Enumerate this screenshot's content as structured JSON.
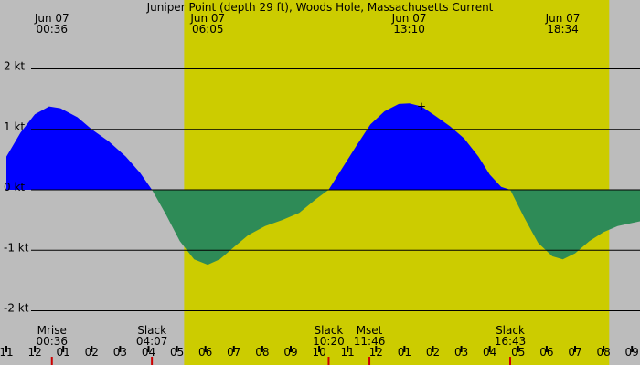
{
  "chart_data": {
    "type": "area",
    "title": "Juniper Point (depth 29 ft), Woods Hole, Massachusetts Current",
    "x_unit": "hours",
    "x_range": [
      -1,
      21.5
    ],
    "y_unit": "kt",
    "ylim": [
      -2.5,
      2.2
    ],
    "y_ticks": [
      {
        "value": 2,
        "label": "2 kt"
      },
      {
        "value": 1,
        "label": "1 kt"
      },
      {
        "value": 0,
        "label": "0 kt"
      },
      {
        "value": -1,
        "label": "-1 kt"
      },
      {
        "value": -2,
        "label": "-2 kt"
      }
    ],
    "x_ticks": [
      {
        "value": -1,
        "label": "11"
      },
      {
        "value": 0,
        "label": "12"
      },
      {
        "value": 1,
        "label": "01"
      },
      {
        "value": 2,
        "label": "02"
      },
      {
        "value": 3,
        "label": "03"
      },
      {
        "value": 4,
        "label": "04"
      },
      {
        "value": 5,
        "label": "05"
      },
      {
        "value": 6,
        "label": "06"
      },
      {
        "value": 7,
        "label": "07"
      },
      {
        "value": 8,
        "label": "08"
      },
      {
        "value": 9,
        "label": "09"
      },
      {
        "value": 10,
        "label": "10"
      },
      {
        "value": 11,
        "label": "11"
      },
      {
        "value": 12,
        "label": "12"
      },
      {
        "value": 13,
        "label": "01"
      },
      {
        "value": 14,
        "label": "02"
      },
      {
        "value": 15,
        "label": "03"
      },
      {
        "value": 16,
        "label": "04"
      },
      {
        "value": 17,
        "label": "05"
      },
      {
        "value": 18,
        "label": "06"
      },
      {
        "value": 19,
        "label": "07"
      },
      {
        "value": 20,
        "label": "08"
      },
      {
        "value": 21,
        "label": "09"
      }
    ],
    "daylight": {
      "start": 5.25,
      "end": 20.2
    },
    "top_labels": [
      {
        "x": 0.6,
        "date": "Jun 07",
        "time": "00:36"
      },
      {
        "x": 6.083,
        "date": "Jun 07",
        "time": "06:05"
      },
      {
        "x": 13.167,
        "date": "Jun 07",
        "time": "13:10"
      },
      {
        "x": 18.567,
        "date": "Jun 07",
        "time": "18:34"
      }
    ],
    "bottom_labels": [
      {
        "x": 0.6,
        "name": "Mrise",
        "time": "00:36"
      },
      {
        "x": 4.117,
        "name": "Slack",
        "time": "04:07"
      },
      {
        "x": 10.333,
        "name": "Slack",
        "time": "10:20"
      },
      {
        "x": 11.767,
        "name": "Mset",
        "time": "11:46"
      },
      {
        "x": 16.717,
        "name": "Slack",
        "time": "16:43"
      }
    ],
    "event_markers": [
      0.6,
      4.117,
      10.333,
      11.767,
      16.717
    ],
    "marker": {
      "x": 13.6,
      "y": 1.38,
      "symbol": "+"
    },
    "x": [
      -1,
      -0.5,
      0,
      0.5,
      0.9,
      1.5,
      2,
      2.6,
      3.2,
      3.7,
      4.12,
      4.6,
      5.1,
      5.6,
      6.08,
      6.5,
      7,
      7.5,
      8.1,
      8.7,
      9.3,
      9.9,
      10.33,
      10.8,
      11.3,
      11.8,
      12.3,
      12.8,
      13.17,
      13.6,
      14.1,
      14.6,
      15.1,
      15.6,
      16,
      16.4,
      16.72,
      17.2,
      17.7,
      18.2,
      18.57,
      19,
      19.5,
      20,
      20.5,
      21,
      21.5
    ],
    "values": [
      0.55,
      0.95,
      1.25,
      1.38,
      1.35,
      1.2,
      1.0,
      0.8,
      0.55,
      0.28,
      0.0,
      -0.4,
      -0.85,
      -1.15,
      -1.24,
      -1.15,
      -0.95,
      -0.75,
      -0.6,
      -0.5,
      -0.38,
      -0.15,
      0.0,
      0.35,
      0.72,
      1.08,
      1.3,
      1.42,
      1.43,
      1.38,
      1.22,
      1.05,
      0.85,
      0.55,
      0.25,
      0.05,
      0.0,
      -0.45,
      -0.88,
      -1.1,
      -1.15,
      -1.05,
      -0.85,
      -0.7,
      -0.6,
      -0.55,
      -0.5
    ],
    "grid": true,
    "legend": "none",
    "colors": {
      "background": "#bcbcbc",
      "daylight": "#cccc00",
      "flood": "#0000ff",
      "ebb": "#2e8b57",
      "event_marker": "#cc0000"
    }
  }
}
